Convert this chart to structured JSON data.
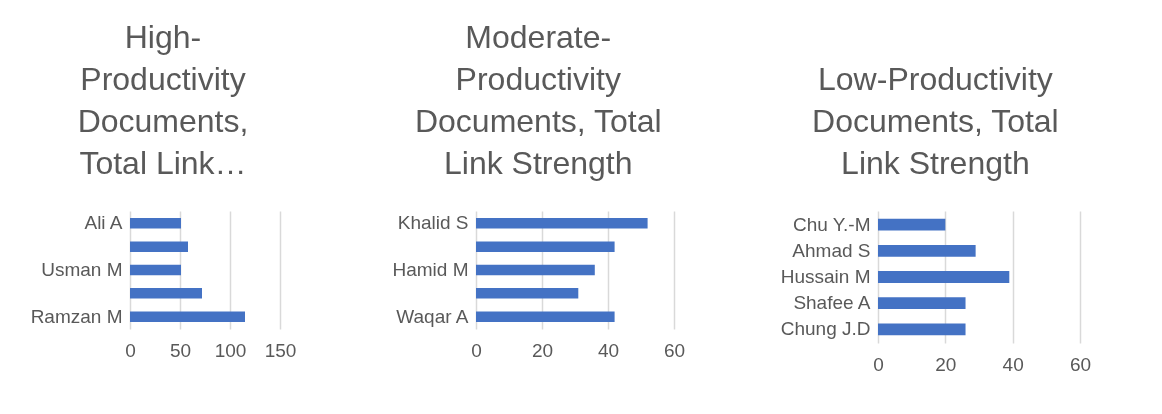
{
  "chart_data": [
    {
      "type": "bar",
      "orientation": "horizontal",
      "title": "High-Productivity Documents, Total Link…",
      "categories": [
        "Ali A",
        null,
        "Usman M",
        null,
        "Ramzan M"
      ],
      "values": [
        51,
        58,
        51,
        72,
        115
      ],
      "color": "#4472c4",
      "xlim": [
        0,
        150
      ],
      "xticks": [
        0,
        50,
        100,
        150
      ],
      "grid": "x"
    },
    {
      "type": "bar",
      "orientation": "horizontal",
      "title": "Moderate-Productivity Documents, Total Link Strength",
      "categories": [
        "Khalid S",
        null,
        "Hamid M",
        null,
        "Waqar A"
      ],
      "values": [
        52,
        42,
        36,
        31,
        42
      ],
      "color": "#4472c4",
      "xlim": [
        0,
        60
      ],
      "xticks": [
        0,
        20,
        40,
        60
      ],
      "grid": "x"
    },
    {
      "type": "bar",
      "orientation": "horizontal",
      "title": "Low-Productivity Documents, Total Link Strength",
      "categories": [
        "Chu Y.-M",
        "Ahmad S",
        "Hussain M",
        "Shafee A",
        "Chung J.D"
      ],
      "values": [
        20,
        29,
        39,
        26,
        26
      ],
      "color": "#4472c4",
      "xlim": [
        0,
        60
      ],
      "xticks": [
        0,
        20,
        40,
        60
      ],
      "grid": "x"
    }
  ]
}
